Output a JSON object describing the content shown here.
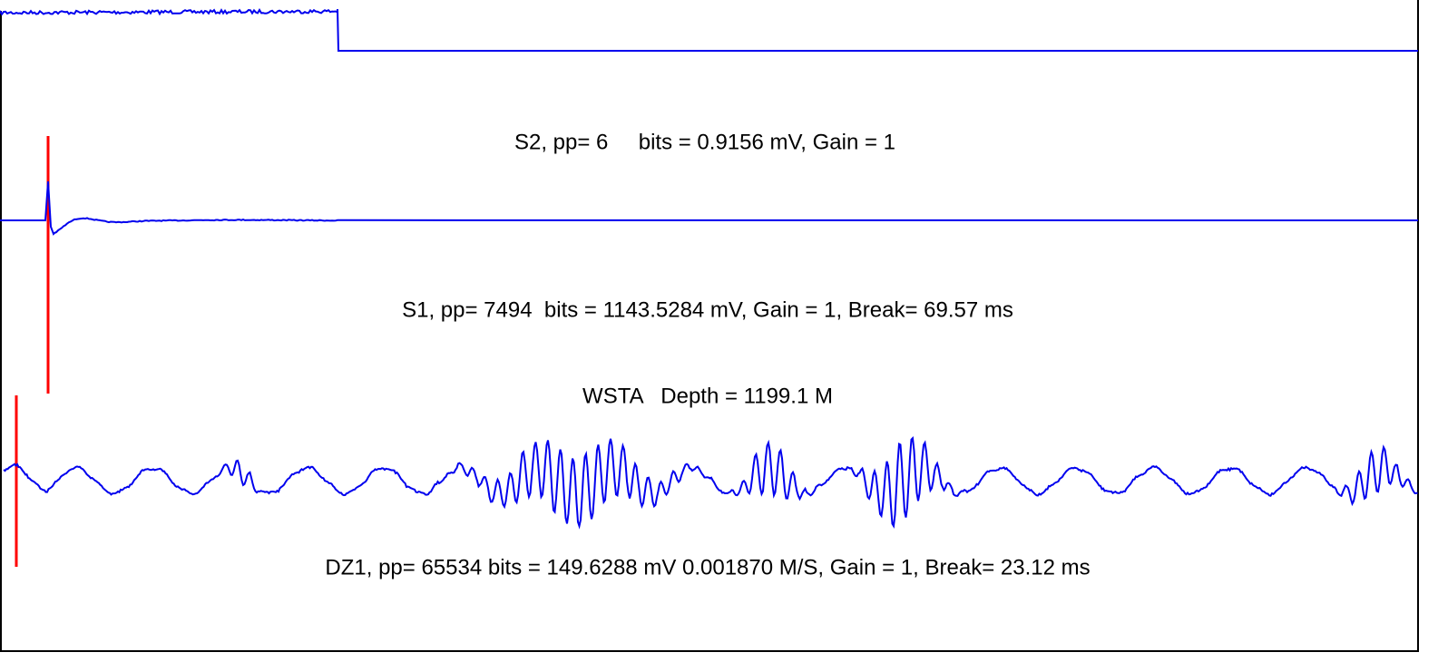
{
  "traces": [
    {
      "label": "S2, pp= 6     bits = 0.9156 mV, Gain = 1"
    },
    {
      "label": "S1, pp= 7494  bits = 1143.5284 mV, Gain = 1, Break= 69.57 ms"
    },
    {
      "label": "WSTA   Depth = 1199.1 M"
    },
    {
      "label": "DZ1, pp= 65534 bits = 149.6288 mV 0.001870 M/S, Gain = 1, Break= 23.12 ms"
    }
  ]
}
